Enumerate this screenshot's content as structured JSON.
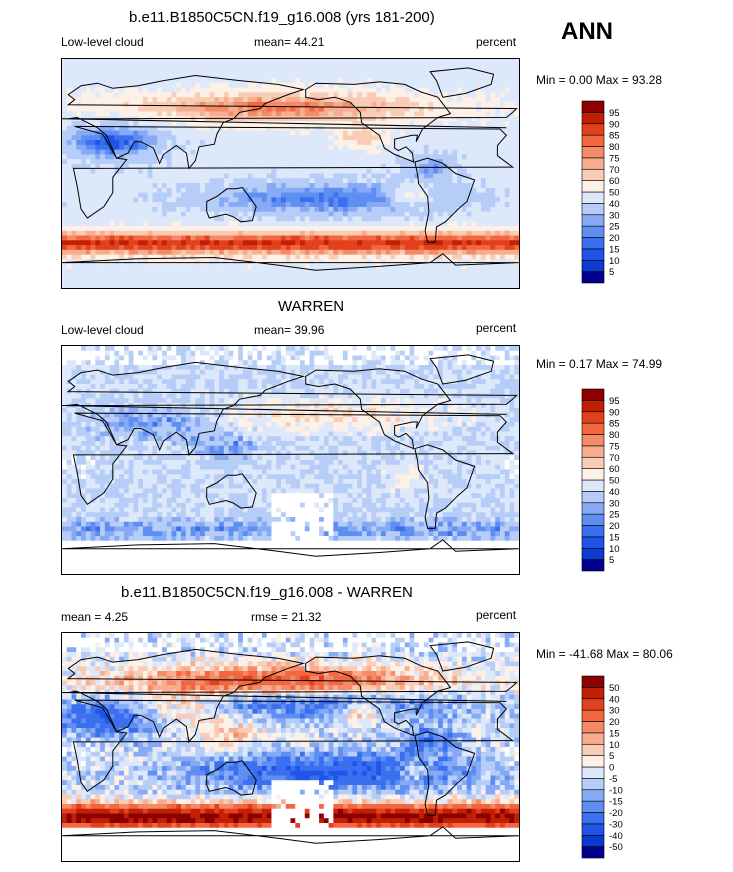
{
  "season": "ANN",
  "chart_data": [
    {
      "type": "heatmap",
      "title": "b.e11.B1850C5CN.f19_g16.008 (yrs 181-200)",
      "left_label": "Low-level cloud",
      "center_label": "mean=  44.21",
      "right_label": "percent",
      "min_max": "Min =   0.00 Max =  93.28",
      "min": 0.0,
      "max": 93.28,
      "colorbar_levels": [
        "5",
        "10",
        "15",
        "20",
        "25",
        "30",
        "40",
        "50",
        "60",
        "70",
        "75",
        "80",
        "85",
        "90",
        "95"
      ],
      "colorbar_colors": [
        "#00008b",
        "#0a3ad0",
        "#1c55e8",
        "#3a70f0",
        "#5e8ef2",
        "#86aaf5",
        "#b6cdf7",
        "#dde8fb",
        "#fdf0e6",
        "#f9cdb5",
        "#f7ad8e",
        "#f48a66",
        "#f26640",
        "#e2411d",
        "#c12004",
        "#8b0000"
      ],
      "mean": 44.21
    },
    {
      "type": "heatmap",
      "title": "WARREN",
      "left_label": "Low-level cloud",
      "center_label": "mean=  39.96",
      "right_label": "percent",
      "min_max": "Min =   0.17 Max =  74.99",
      "min": 0.17,
      "max": 74.99,
      "colorbar_levels": [
        "5",
        "10",
        "15",
        "20",
        "25",
        "30",
        "40",
        "50",
        "60",
        "70",
        "75",
        "80",
        "85",
        "90",
        "95"
      ],
      "colorbar_colors": [
        "#00008b",
        "#0a3ad0",
        "#1c55e8",
        "#3a70f0",
        "#5e8ef2",
        "#86aaf5",
        "#b6cdf7",
        "#dde8fb",
        "#fdf0e6",
        "#f9cdb5",
        "#f7ad8e",
        "#f48a66",
        "#f26640",
        "#e2411d",
        "#c12004",
        "#8b0000"
      ],
      "mean": 39.96
    },
    {
      "type": "heatmap",
      "title": "b.e11.B1850C5CN.f19_g16.008 - WARREN",
      "left_label": "mean =   4.25",
      "center_label": "rmse =  21.32",
      "right_label": "percent",
      "min_max": "Min = -41.68 Max =  80.06",
      "min": -41.68,
      "max": 80.06,
      "colorbar_levels": [
        "-50",
        "-40",
        "-30",
        "-20",
        "-15",
        "-10",
        "-5",
        "0",
        "5",
        "10",
        "15",
        "20",
        "30",
        "40",
        "50"
      ],
      "colorbar_colors": [
        "#00008b",
        "#0a3ad0",
        "#1c55e8",
        "#3a70f0",
        "#5e8ef2",
        "#86aaf5",
        "#b6cdf7",
        "#dde8fb",
        "#fdf0e6",
        "#f9cdb5",
        "#f7ad8e",
        "#f48a66",
        "#f26640",
        "#e2411d",
        "#c12004",
        "#8b0000"
      ],
      "mean": 4.25,
      "rmse": 21.32
    }
  ]
}
